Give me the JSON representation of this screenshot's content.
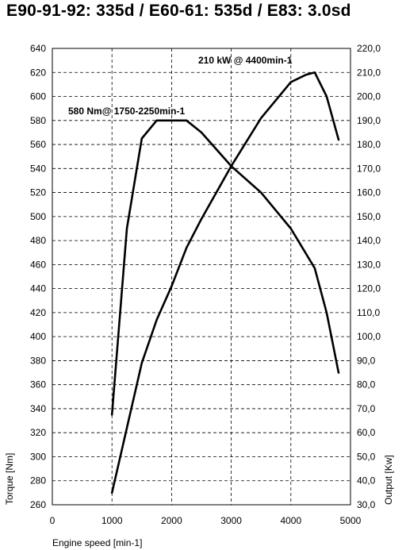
{
  "chart_data": {
    "type": "line",
    "title": "E90-91-92: 335d / E60-61: 535d / E83: 3.0sd",
    "xlabel": "Engine speed [min-1]",
    "ylabel_left": "Torque [Nm]",
    "ylabel_right": "Output [Kw]",
    "xlim": [
      0,
      5000
    ],
    "ylim_left": [
      260,
      640
    ],
    "ylim_right": [
      30,
      220
    ],
    "grid": true,
    "x_ticks": [
      "0",
      "1000",
      "2000",
      "3000",
      "4000",
      "5000"
    ],
    "y_ticks_left": [
      "260",
      "280",
      "300",
      "320",
      "340",
      "360",
      "380",
      "400",
      "420",
      "440",
      "460",
      "480",
      "500",
      "520",
      "540",
      "560",
      "580",
      "600",
      "620",
      "640"
    ],
    "y_ticks_right": [
      "30,0",
      "40,0",
      "50,0",
      "60,0",
      "70,0",
      "80,0",
      "90,0",
      "100,0",
      "110,0",
      "120,0",
      "130,0",
      "140,0",
      "150,0",
      "160,0",
      "170,0",
      "180,0",
      "190,0",
      "200,0",
      "210,0",
      "220,0"
    ],
    "annotations": [
      {
        "text": "580 Nm@ 1750-2250min-1",
        "series": "torque"
      },
      {
        "text": "210 kW @ 4400min-1",
        "series": "output"
      }
    ],
    "series": [
      {
        "id": "torque",
        "axis": "left",
        "x": [
          1000,
          1250,
          1500,
          1750,
          2000,
          2250,
          2500,
          3000,
          3500,
          4000,
          4400,
          4600,
          4800
        ],
        "y": [
          335,
          490,
          565,
          580,
          580,
          580,
          570,
          542,
          520,
          490,
          457,
          420,
          370
        ]
      },
      {
        "id": "output",
        "axis": "right",
        "x": [
          1000,
          1250,
          1500,
          1750,
          2000,
          2250,
          2500,
          3000,
          3500,
          4000,
          4250,
          4400,
          4600,
          4800
        ],
        "y": [
          35,
          62,
          89,
          107,
          121,
          137,
          149,
          171,
          191,
          206,
          209,
          210,
          200,
          182
        ]
      }
    ]
  }
}
